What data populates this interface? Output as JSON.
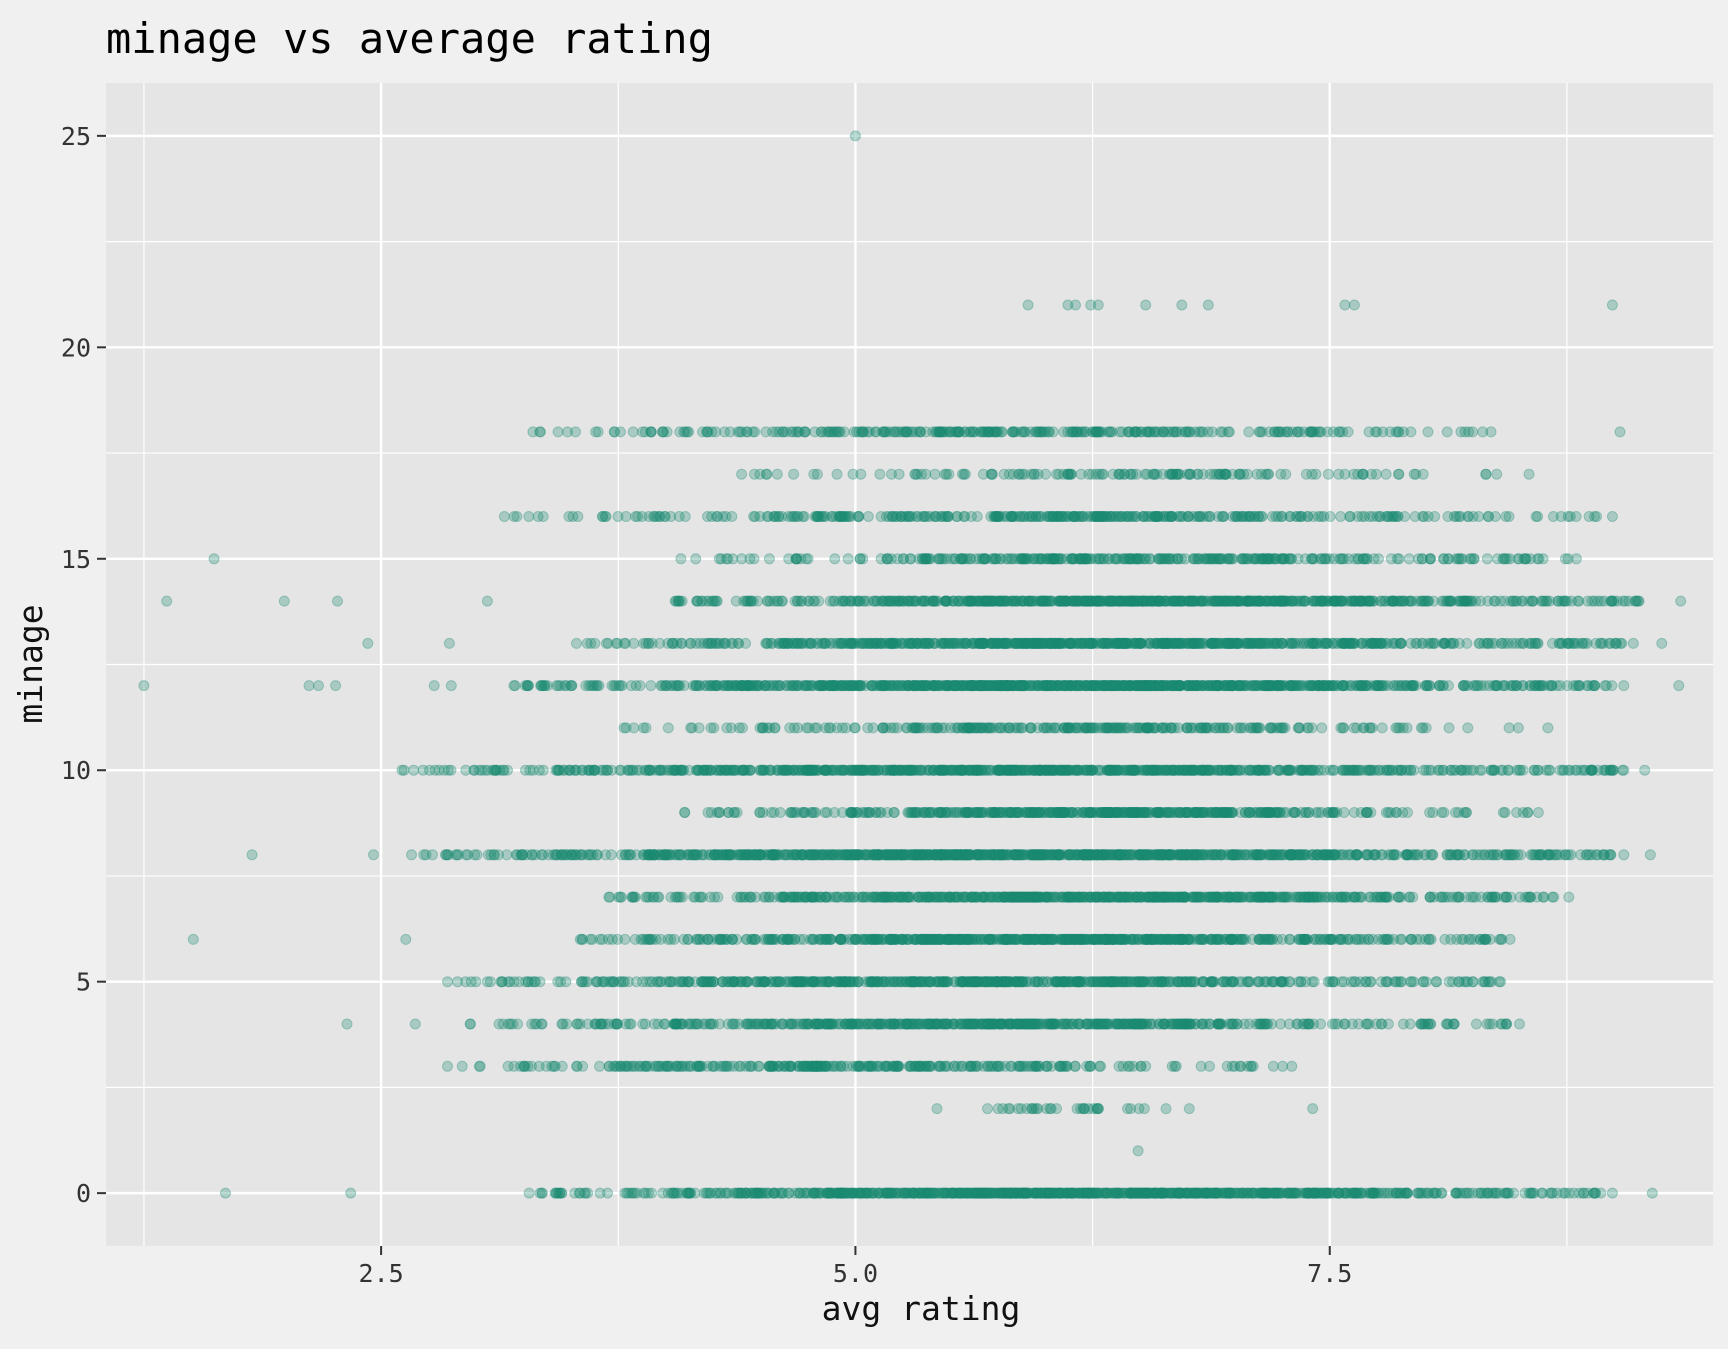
{
  "chart_data": {
    "type": "scatter",
    "title": "minage vs average rating",
    "xlabel": "avg rating",
    "ylabel": "minage",
    "xlim": [
      1.05,
      9.52
    ],
    "ylim": [
      -1.25,
      26.25
    ],
    "x_ticks": [
      2.5,
      5.0,
      7.5
    ],
    "x_tick_labels": [
      "2.5",
      "5.0",
      "7.5"
    ],
    "x_minor_ticks": [
      1.25,
      3.75,
      6.25,
      8.75
    ],
    "y_ticks": [
      0,
      5,
      10,
      15,
      20,
      25
    ],
    "y_tick_labels": [
      "0",
      "5",
      "10",
      "15",
      "20",
      "25"
    ],
    "y_minor_ticks": [
      2.5,
      7.5,
      12.5,
      17.5,
      22.5
    ],
    "grid": true,
    "colors": {
      "point": "#1b8a72",
      "panel_bg": "#e5e5e5",
      "page_bg": "#f0f0f0",
      "grid": "#ffffff"
    },
    "point_alpha": 0.3,
    "density_note": "rows are dense; scattered outliers listed explicitly",
    "outliers": [
      {
        "x": 5.0,
        "y": 25
      },
      {
        "x": 5.91,
        "y": 21
      },
      {
        "x": 6.12,
        "y": 21
      },
      {
        "x": 6.16,
        "y": 21
      },
      {
        "x": 6.24,
        "y": 21
      },
      {
        "x": 6.28,
        "y": 21
      },
      {
        "x": 6.53,
        "y": 21
      },
      {
        "x": 6.72,
        "y": 21
      },
      {
        "x": 6.86,
        "y": 21
      },
      {
        "x": 7.58,
        "y": 21
      },
      {
        "x": 7.63,
        "y": 21
      },
      {
        "x": 8.99,
        "y": 21
      },
      {
        "x": 1.62,
        "y": 15
      },
      {
        "x": 1.37,
        "y": 14
      },
      {
        "x": 1.99,
        "y": 14
      },
      {
        "x": 2.27,
        "y": 14
      },
      {
        "x": 3.06,
        "y": 14
      },
      {
        "x": 2.43,
        "y": 13
      },
      {
        "x": 2.86,
        "y": 13
      },
      {
        "x": 1.25,
        "y": 12
      },
      {
        "x": 2.12,
        "y": 12
      },
      {
        "x": 2.17,
        "y": 12
      },
      {
        "x": 2.26,
        "y": 12
      },
      {
        "x": 2.78,
        "y": 12
      },
      {
        "x": 2.87,
        "y": 12
      },
      {
        "x": 1.82,
        "y": 8
      },
      {
        "x": 2.46,
        "y": 8
      },
      {
        "x": 1.51,
        "y": 6
      },
      {
        "x": 2.63,
        "y": 6
      },
      {
        "x": 2.32,
        "y": 4
      },
      {
        "x": 2.68,
        "y": 4
      },
      {
        "x": 1.68,
        "y": 0
      },
      {
        "x": 2.34,
        "y": 0
      },
      {
        "x": 6.49,
        "y": 1
      },
      {
        "x": 9.35,
        "y": 14
      },
      {
        "x": 9.25,
        "y": 13
      },
      {
        "x": 9.34,
        "y": 12
      },
      {
        "x": 9.16,
        "y": 10
      },
      {
        "x": 9.19,
        "y": 8
      },
      {
        "x": 9.2,
        "y": 0
      },
      {
        "x": 9.03,
        "y": 18
      },
      {
        "x": 7.41,
        "y": 2
      }
    ],
    "rows": [
      {
        "y": 18,
        "x_min": 3.3,
        "x_max": 8.35,
        "count": 300
      },
      {
        "y": 17,
        "x_min": 4.4,
        "x_max": 8.55,
        "count": 140
      },
      {
        "y": 16,
        "x_min": 3.15,
        "x_max": 8.99,
        "count": 360
      },
      {
        "y": 15,
        "x_min": 4.08,
        "x_max": 8.8,
        "count": 330
      },
      {
        "y": 14,
        "x_min": 4.05,
        "x_max": 9.13,
        "count": 700
      },
      {
        "y": 13,
        "x_min": 3.53,
        "x_max": 9.1,
        "count": 700
      },
      {
        "y": 12,
        "x_min": 3.2,
        "x_max": 9.05,
        "count": 900
      },
      {
        "y": 11,
        "x_min": 3.78,
        "x_max": 8.65,
        "count": 270
      },
      {
        "y": 10,
        "x_min": 2.61,
        "x_max": 9.05,
        "count": 800
      },
      {
        "y": 9,
        "x_min": 4.1,
        "x_max": 8.6,
        "count": 450
      },
      {
        "y": 8,
        "x_min": 2.66,
        "x_max": 9.05,
        "count": 950
      },
      {
        "y": 7,
        "x_min": 3.7,
        "x_max": 8.76,
        "count": 650
      },
      {
        "y": 6,
        "x_min": 3.55,
        "x_max": 8.45,
        "count": 650
      },
      {
        "y": 5,
        "x_min": 2.85,
        "x_max": 8.4,
        "count": 600
      },
      {
        "y": 4,
        "x_min": 2.97,
        "x_max": 8.5,
        "count": 550
      },
      {
        "y": 3,
        "x_min": 2.85,
        "x_max": 7.3,
        "count": 300
      },
      {
        "y": 2,
        "x_min": 5.43,
        "x_max": 6.76,
        "count": 35
      },
      {
        "y": 0,
        "x_min": 3.28,
        "x_max": 8.99,
        "count": 850
      }
    ]
  }
}
